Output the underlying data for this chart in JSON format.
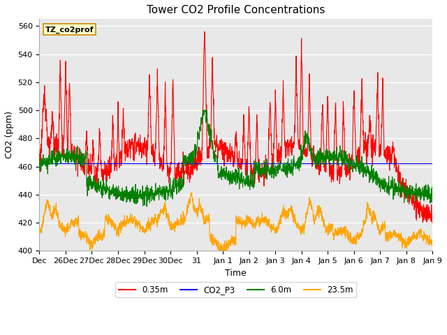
{
  "title": "Tower CO2 Profile Concentrations",
  "xlabel": "Time",
  "ylabel": "CO2 (ppm)",
  "ylim": [
    400,
    565
  ],
  "yticks": [
    400,
    420,
    440,
    460,
    480,
    500,
    520,
    540,
    560
  ],
  "legend_label": "TZ_co2prof",
  "series_labels": [
    "0.35m",
    "CO2_P3",
    "6.0m",
    "23.5m"
  ],
  "series_colors": [
    "red",
    "blue",
    "green",
    "orange"
  ],
  "fig_bg": "#ffffff",
  "plot_bg": "#e8e8e8",
  "grid_color": "#ffffff",
  "title_fontsize": 11,
  "axis_fontsize": 9,
  "tick_fontsize": 8,
  "tick_labels": [
    "Dec",
    "26Dec",
    "27Dec",
    "28Dec",
    "29Dec",
    "30Dec",
    "31",
    "Jan 1",
    "Jan 2",
    "Jan 3",
    "Jan 4",
    "Jan 5",
    "Jan 6",
    "Jan 7",
    "Jan 8",
    "Jan 9"
  ]
}
